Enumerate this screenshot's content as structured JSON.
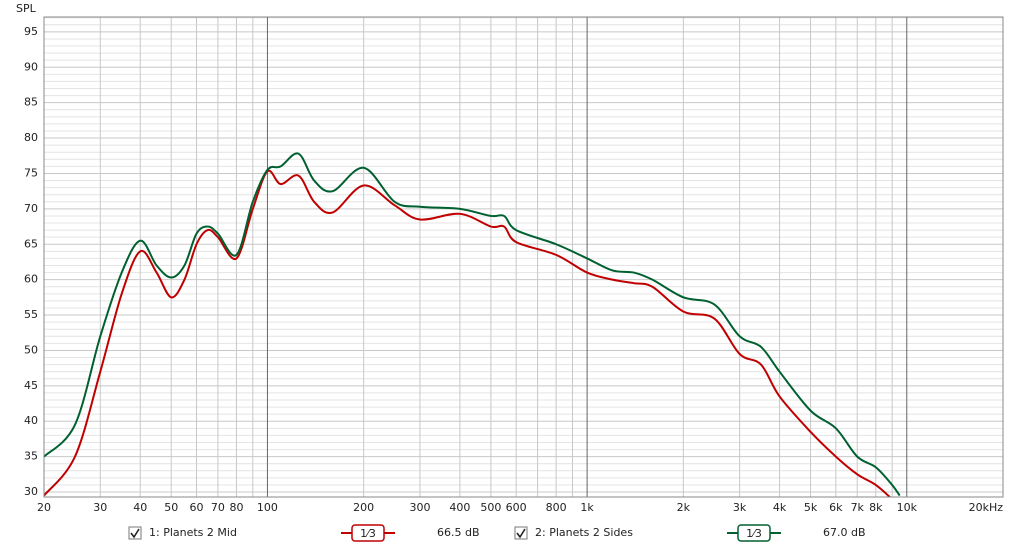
{
  "chart_data": {
    "type": "line",
    "y_label": "SPL",
    "xscale": "log",
    "grid": true,
    "xlim": [
      20,
      20000
    ],
    "ylim": [
      29.3,
      97.1
    ],
    "xticks": [
      20,
      30,
      40,
      50,
      60,
      70,
      80,
      100,
      200,
      300,
      400,
      500,
      600,
      800,
      {
        "value": 1000,
        "label": "1k"
      },
      {
        "value": 2000,
        "label": "2k"
      },
      {
        "value": 3000,
        "label": "3k"
      },
      {
        "value": 4000,
        "label": "4k"
      },
      {
        "value": 5000,
        "label": "5k"
      },
      {
        "value": 6000,
        "label": "6k"
      },
      {
        "value": 7000,
        "label": "7k"
      },
      {
        "value": 8000,
        "label": "8k"
      },
      {
        "value": 10000,
        "label": "10k"
      },
      {
        "value": 20000,
        "label": "20kHz"
      }
    ],
    "xminor": [
      90,
      700,
      900,
      9000
    ],
    "yticks": [
      30,
      35,
      40,
      45,
      50,
      55,
      60,
      65,
      70,
      75,
      80,
      85,
      90,
      95
    ],
    "yminor": [
      31,
      32,
      33,
      34,
      36,
      37,
      38,
      39,
      41,
      42,
      43,
      44,
      46,
      47,
      48,
      49,
      51,
      52,
      53,
      54,
      56,
      57,
      58,
      59,
      61,
      62,
      63,
      64,
      66,
      67,
      68,
      69,
      71,
      72,
      73,
      74,
      76,
      77,
      78,
      79,
      81,
      82,
      83,
      84,
      86,
      87,
      88,
      89,
      91,
      92,
      93,
      94,
      96,
      97
    ],
    "x": [
      20,
      25,
      30,
      35,
      40,
      45,
      50,
      55,
      60,
      65,
      70,
      80,
      90,
      100,
      110,
      125,
      140,
      160,
      200,
      250,
      300,
      400,
      500,
      550,
      600,
      800,
      1000,
      1200,
      1400,
      1600,
      2000,
      2500,
      3000,
      3500,
      4000,
      5000,
      6000,
      7000,
      8000,
      9000,
      9500
    ],
    "series": [
      {
        "name": "1: Planets 2 Mid",
        "color": "#c00000",
        "checked": true,
        "smoothing": "1⁄3",
        "level": "66.5 dB",
        "values": [
          29.5,
          35,
          47,
          58,
          64,
          61,
          57.5,
          60,
          65,
          67,
          66,
          63,
          70,
          75.3,
          73.5,
          74.7,
          71,
          69.5,
          73.3,
          70.5,
          68.5,
          69.3,
          67.5,
          67.5,
          65.3,
          63.5,
          61,
          60,
          59.5,
          59,
          55.5,
          54.5,
          49.5,
          48,
          43.5,
          38.5,
          35,
          32.5,
          31,
          29,
          null
        ]
      },
      {
        "name": "2: Planets 2 Sides",
        "color": "#006030",
        "checked": true,
        "smoothing": "1⁄3",
        "level": "67.0 dB",
        "values": [
          35,
          39.5,
          52,
          61,
          65.5,
          62,
          60.3,
          62,
          66.5,
          67.5,
          66.5,
          63.5,
          71,
          75.5,
          76,
          77.8,
          74,
          72.5,
          75.8,
          71,
          70.3,
          70,
          69,
          69,
          67,
          65,
          63,
          61.3,
          61,
          60,
          57.5,
          56.5,
          52,
          50.5,
          47,
          41.5,
          39,
          35,
          33.5,
          31,
          29.5
        ]
      }
    ]
  }
}
